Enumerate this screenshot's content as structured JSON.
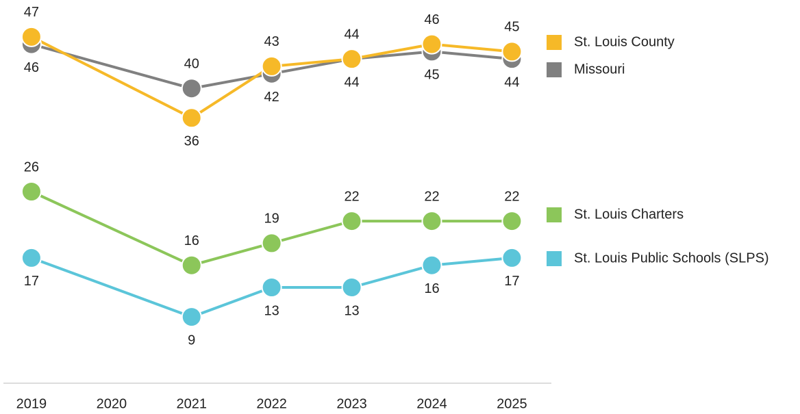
{
  "chart_data": {
    "type": "line",
    "x": [
      2019,
      2021,
      2022,
      2023,
      2024,
      2025
    ],
    "xlim": [
      2018.65,
      2025.45
    ],
    "xticks": [
      2019,
      2020,
      2021,
      2022,
      2023,
      2024,
      2025
    ],
    "ylim": [
      0,
      52
    ],
    "series": [
      {
        "name": "St. Louis County",
        "color": "#f6b928",
        "values": [
          47,
          36,
          43,
          44,
          46,
          45
        ]
      },
      {
        "name": "Missouri",
        "color": "#808080",
        "values": [
          46,
          40,
          42,
          44,
          45,
          44
        ]
      },
      {
        "name": "St. Louis Charters",
        "color": "#8cc65a",
        "values": [
          26,
          16,
          19,
          22,
          22,
          22
        ]
      },
      {
        "name": "St. Louis Public Schools (SLPS)",
        "color": "#5bc5d9",
        "values": [
          17,
          9,
          13,
          13,
          16,
          17
        ]
      }
    ]
  }
}
